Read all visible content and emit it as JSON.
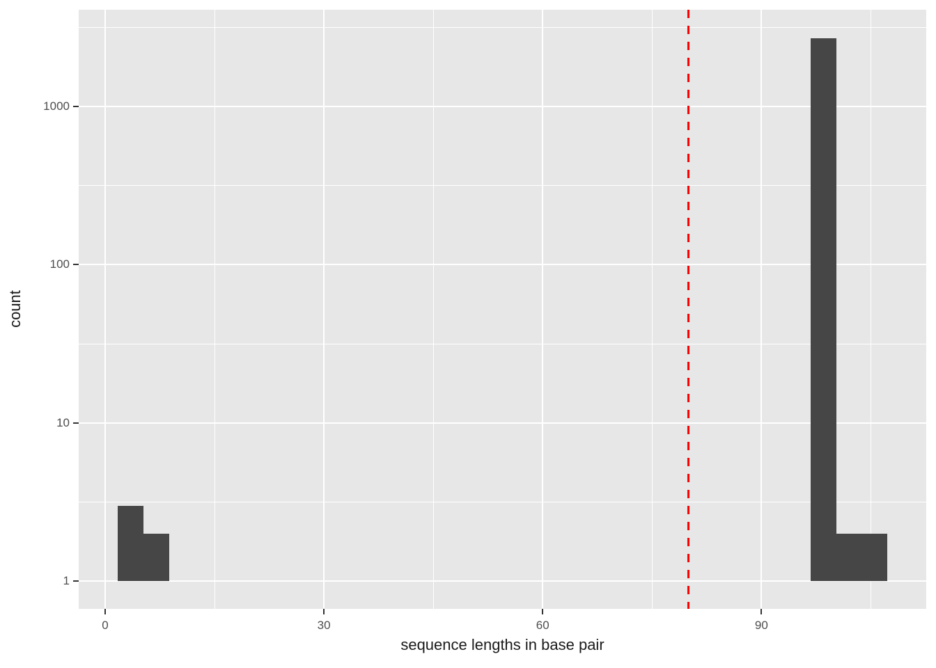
{
  "chart_data": {
    "type": "bar",
    "subtype": "histogram",
    "title": "",
    "xlabel": "sequence lengths in base pair",
    "ylabel": "count",
    "x_ticks": [
      0,
      30,
      60,
      90
    ],
    "x_tick_labels": [
      "0",
      "30",
      "60",
      "90"
    ],
    "x_minor_ticks": [
      15,
      45,
      75,
      105
    ],
    "y_scale": "log10",
    "y_ticks": [
      1,
      10,
      100,
      1000
    ],
    "y_tick_labels": [
      "1",
      "10",
      "100",
      "1000"
    ],
    "y_minor_ticks": [
      3.162,
      31.62,
      316.2,
      3162
    ],
    "x_domain": [
      -3.63,
      112.6
    ],
    "y_log_domain": [
      -0.176,
      3.612
    ],
    "grid": true,
    "legend": false,
    "bars": [
      {
        "x0": 1.7,
        "x1": 5.25,
        "count": 3
      },
      {
        "x0": 5.25,
        "x1": 8.8,
        "count": 2
      },
      {
        "x0": 96.75,
        "x1": 100.3,
        "count": 2700
      },
      {
        "x0": 100.3,
        "x1": 107.3,
        "count": 2
      }
    ],
    "vline": {
      "x": 80,
      "style": "dashed",
      "color": "#FF0000"
    },
    "colors": {
      "bar": "#464646",
      "panel_bg": "#E7E7E7",
      "grid": "#FFFFFF",
      "tick_text": "#4D4D4D",
      "title_text": "#1A1A1A",
      "tick_mark": "#333333",
      "background": "#FFFFFF"
    }
  }
}
